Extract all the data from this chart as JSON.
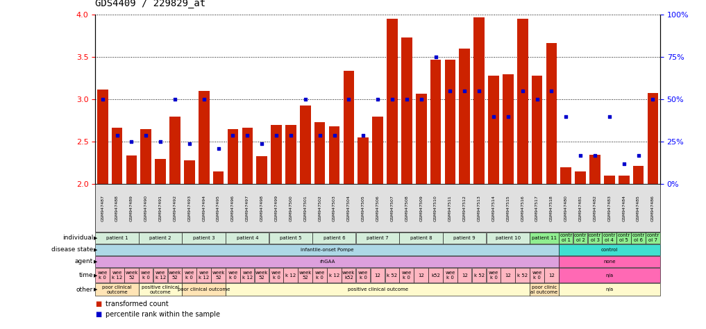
{
  "title": "GDS4409 / 229829_at",
  "samples": [
    "GSM947487",
    "GSM947488",
    "GSM947489",
    "GSM947490",
    "GSM947491",
    "GSM947492",
    "GSM947493",
    "GSM947494",
    "GSM947495",
    "GSM947496",
    "GSM947497",
    "GSM947498",
    "GSM947499",
    "GSM947500",
    "GSM947501",
    "GSM947502",
    "GSM947503",
    "GSM947504",
    "GSM947505",
    "GSM947506",
    "GSM947507",
    "GSM947508",
    "GSM947509",
    "GSM947510",
    "GSM947511",
    "GSM947512",
    "GSM947513",
    "GSM947514",
    "GSM947515",
    "GSM947516",
    "GSM947517",
    "GSM947518",
    "GSM947480",
    "GSM947481",
    "GSM947482",
    "GSM947483",
    "GSM947484",
    "GSM947485",
    "GSM947486"
  ],
  "bar_values": [
    3.12,
    2.67,
    2.34,
    2.65,
    2.3,
    2.8,
    2.28,
    3.1,
    2.15,
    2.65,
    2.67,
    2.33,
    2.7,
    2.7,
    2.93,
    2.73,
    2.68,
    3.34,
    2.55,
    2.8,
    3.95,
    3.73,
    3.07,
    3.47,
    3.47,
    3.6,
    3.97,
    3.28,
    3.3,
    3.95,
    3.28,
    3.67,
    2.2,
    2.15,
    2.35,
    2.1,
    2.1,
    2.22,
    3.08
  ],
  "dot_values_pct": [
    50,
    29,
    25,
    29,
    25,
    50,
    24,
    50,
    21,
    29,
    29,
    24,
    29,
    29,
    50,
    29,
    29,
    50,
    29,
    50,
    50,
    50,
    50,
    75,
    55,
    55,
    55,
    40,
    40,
    55,
    50,
    55,
    40,
    17,
    17,
    40,
    12,
    17,
    50
  ],
  "ylim_left": [
    2.0,
    4.0
  ],
  "ylim_right": [
    0,
    100
  ],
  "bar_color": "#CC2200",
  "dot_color": "#0000CC",
  "yticks_left": [
    2.0,
    2.5,
    3.0,
    3.5,
    4.0
  ],
  "yticks_right": [
    0,
    25,
    50,
    75,
    100
  ],
  "individual_segments": [
    {
      "text": "patient 1",
      "start": 0,
      "end": 3,
      "color": "#d4edda"
    },
    {
      "text": "patient 2",
      "start": 3,
      "end": 6,
      "color": "#d4edda"
    },
    {
      "text": "patient 3",
      "start": 6,
      "end": 9,
      "color": "#d4edda"
    },
    {
      "text": "patient 4",
      "start": 9,
      "end": 12,
      "color": "#d4edda"
    },
    {
      "text": "patient 5",
      "start": 12,
      "end": 15,
      "color": "#d4edda"
    },
    {
      "text": "patient 6",
      "start": 15,
      "end": 18,
      "color": "#d4edda"
    },
    {
      "text": "patient 7",
      "start": 18,
      "end": 21,
      "color": "#d4edda"
    },
    {
      "text": "patient 8",
      "start": 21,
      "end": 24,
      "color": "#d4edda"
    },
    {
      "text": "patient 9",
      "start": 24,
      "end": 27,
      "color": "#d4edda"
    },
    {
      "text": "patient 10",
      "start": 27,
      "end": 30,
      "color": "#d4edda"
    },
    {
      "text": "patient 11",
      "start": 30,
      "end": 32,
      "color": "#90ee90"
    },
    {
      "text": "contr\nol 1",
      "start": 32,
      "end": 33,
      "color": "#90ee90"
    },
    {
      "text": "contr\nol 2",
      "start": 33,
      "end": 34,
      "color": "#90ee90"
    },
    {
      "text": "contr\nol 3",
      "start": 34,
      "end": 35,
      "color": "#90ee90"
    },
    {
      "text": "contr\nol 4",
      "start": 35,
      "end": 36,
      "color": "#90ee90"
    },
    {
      "text": "contr\nol 5",
      "start": 36,
      "end": 37,
      "color": "#90ee90"
    },
    {
      "text": "contr\nol 6",
      "start": 37,
      "end": 38,
      "color": "#90ee90"
    },
    {
      "text": "contr\nol 7",
      "start": 38,
      "end": 39,
      "color": "#90ee90"
    }
  ],
  "disease_state_segments": [
    {
      "text": "infantile-onset Pompe",
      "start": 0,
      "end": 32,
      "color": "#add8e6"
    },
    {
      "text": "control",
      "start": 32,
      "end": 39,
      "color": "#40e0d0"
    }
  ],
  "agent_segments": [
    {
      "text": "rhGAA",
      "start": 0,
      "end": 32,
      "color": "#dda0dd"
    },
    {
      "text": "none",
      "start": 32,
      "end": 39,
      "color": "#ff69b4"
    }
  ],
  "time_segments": [
    {
      "text": "wee\nk 0",
      "start": 0,
      "end": 1,
      "color": "#ffb6c1"
    },
    {
      "text": "wee\nk 12",
      "start": 1,
      "end": 2,
      "color": "#ffb6c1"
    },
    {
      "text": "week\n52",
      "start": 2,
      "end": 3,
      "color": "#ffb6c1"
    },
    {
      "text": "wee\nk 0",
      "start": 3,
      "end": 4,
      "color": "#ffb6c1"
    },
    {
      "text": "wee\nk 12",
      "start": 4,
      "end": 5,
      "color": "#ffb6c1"
    },
    {
      "text": "week\n52",
      "start": 5,
      "end": 6,
      "color": "#ffb6c1"
    },
    {
      "text": "wee\nk 0",
      "start": 6,
      "end": 7,
      "color": "#ffb6c1"
    },
    {
      "text": "wee\nk 12",
      "start": 7,
      "end": 8,
      "color": "#ffb6c1"
    },
    {
      "text": "week\n52",
      "start": 8,
      "end": 9,
      "color": "#ffb6c1"
    },
    {
      "text": "wee\nk 0",
      "start": 9,
      "end": 10,
      "color": "#ffb6c1"
    },
    {
      "text": "wee\nk 12",
      "start": 10,
      "end": 11,
      "color": "#ffb6c1"
    },
    {
      "text": "week\n52",
      "start": 11,
      "end": 12,
      "color": "#ffb6c1"
    },
    {
      "text": "wee\nk 0",
      "start": 12,
      "end": 13,
      "color": "#ffb6c1"
    },
    {
      "text": "k 12",
      "start": 13,
      "end": 14,
      "color": "#ffb6c1"
    },
    {
      "text": "week\n52",
      "start": 14,
      "end": 15,
      "color": "#ffb6c1"
    },
    {
      "text": "wee\nk 0",
      "start": 15,
      "end": 16,
      "color": "#ffb6c1"
    },
    {
      "text": "k 12",
      "start": 16,
      "end": 17,
      "color": "#ffb6c1"
    },
    {
      "text": "week\nk52",
      "start": 17,
      "end": 18,
      "color": "#ffb6c1"
    },
    {
      "text": "wee\nk 0",
      "start": 18,
      "end": 19,
      "color": "#ffb6c1"
    },
    {
      "text": "12",
      "start": 19,
      "end": 20,
      "color": "#ffb6c1"
    },
    {
      "text": "k 52",
      "start": 20,
      "end": 21,
      "color": "#ffb6c1"
    },
    {
      "text": "wee\nk 0",
      "start": 21,
      "end": 22,
      "color": "#ffb6c1"
    },
    {
      "text": "12",
      "start": 22,
      "end": 23,
      "color": "#ffb6c1"
    },
    {
      "text": "k52",
      "start": 23,
      "end": 24,
      "color": "#ffb6c1"
    },
    {
      "text": "wee\nk 0",
      "start": 24,
      "end": 25,
      "color": "#ffb6c1"
    },
    {
      "text": "12",
      "start": 25,
      "end": 26,
      "color": "#ffb6c1"
    },
    {
      "text": "k 52",
      "start": 26,
      "end": 27,
      "color": "#ffb6c1"
    },
    {
      "text": "wee\nk 0",
      "start": 27,
      "end": 28,
      "color": "#ffb6c1"
    },
    {
      "text": "12",
      "start": 28,
      "end": 29,
      "color": "#ffb6c1"
    },
    {
      "text": "k 52",
      "start": 29,
      "end": 30,
      "color": "#ffb6c1"
    },
    {
      "text": "wee\nk 0",
      "start": 30,
      "end": 31,
      "color": "#ffb6c1"
    },
    {
      "text": "12",
      "start": 31,
      "end": 32,
      "color": "#ffb6c1"
    },
    {
      "text": "n/a",
      "start": 32,
      "end": 39,
      "color": "#ff69b4"
    }
  ],
  "other_segments": [
    {
      "text": "poor clinical\noutcome",
      "start": 0,
      "end": 3,
      "color": "#ffe4b5"
    },
    {
      "text": "positive clinical\noutcome",
      "start": 3,
      "end": 6,
      "color": "#fffacd"
    },
    {
      "text": "poor clinical outcome",
      "start": 6,
      "end": 9,
      "color": "#ffe4b5"
    },
    {
      "text": "positive clinical outcome",
      "start": 9,
      "end": 30,
      "color": "#fffacd"
    },
    {
      "text": "poor clinic\nal outcome",
      "start": 30,
      "end": 32,
      "color": "#ffe4b5"
    },
    {
      "text": "n/a",
      "start": 32,
      "end": 39,
      "color": "#fffacd"
    }
  ],
  "legend_items": [
    {
      "color": "#CC2200",
      "label": "transformed count"
    },
    {
      "color": "#0000CC",
      "label": "percentile rank within the sample"
    }
  ],
  "row_labels": [
    "individual",
    "disease state",
    "agent",
    "time",
    "other"
  ]
}
